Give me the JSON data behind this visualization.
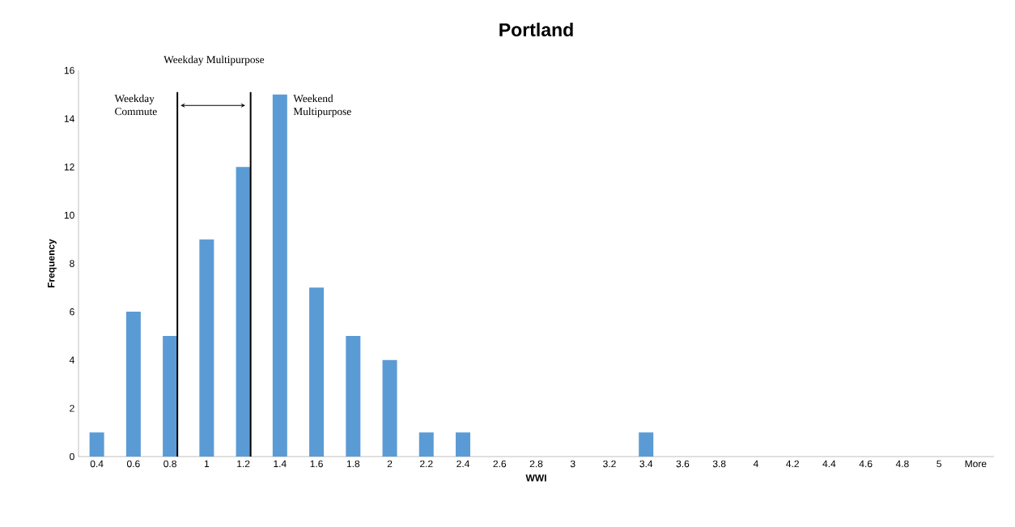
{
  "chart_data": {
    "type": "bar",
    "title": "Portland",
    "xlabel": "WWI",
    "ylabel": "Frequency",
    "categories": [
      "0.4",
      "0.6",
      "0.8",
      "1",
      "1.2",
      "1.4",
      "1.6",
      "1.8",
      "2",
      "2.2",
      "2.4",
      "2.6",
      "2.8",
      "3",
      "3.2",
      "3.4",
      "3.6",
      "3.8",
      "4",
      "4.2",
      "4.4",
      "4.6",
      "4.8",
      "5",
      "More"
    ],
    "values": [
      1,
      6,
      5,
      9,
      12,
      15,
      7,
      5,
      4,
      1,
      1,
      0,
      0,
      0,
      0,
      1,
      0,
      0,
      0,
      0,
      0,
      0,
      0,
      0,
      0
    ],
    "color": "#5b9bd5",
    "ylim": [
      0,
      16
    ],
    "yticks": [
      0,
      2,
      4,
      6,
      8,
      10,
      12,
      14,
      16
    ],
    "ref_lines": [
      {
        "axis": "x",
        "value": "0.8",
        "label": "Weekday Commute",
        "color": "#000000"
      },
      {
        "axis": "x",
        "value": "1.2",
        "color": "#000000"
      }
    ],
    "annotations": [
      "Weekday Multipurpose",
      "Weekend Multipurpose"
    ]
  }
}
